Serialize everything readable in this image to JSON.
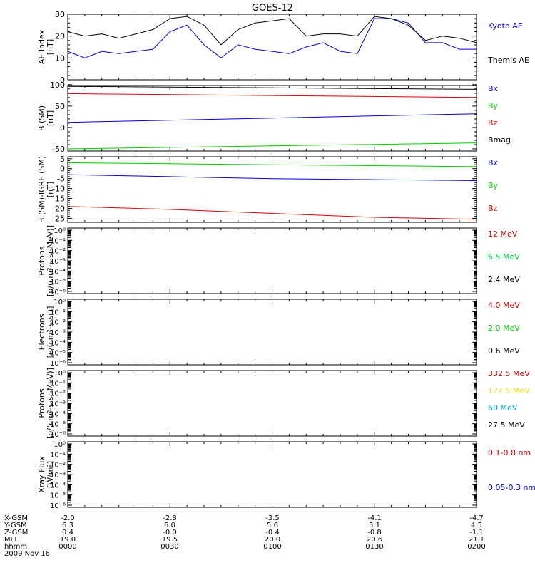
{
  "title": "GOES-12",
  "chart_data": [
    {
      "type": "line",
      "ylabel": "AE Index",
      "yunit": "[nT]",
      "ylim": [
        0,
        30
      ],
      "yticks": [
        0,
        10,
        20,
        30
      ],
      "x": [
        "0000",
        "0005",
        "0010",
        "0015",
        "0020",
        "0025",
        "0030",
        "0035",
        "0040",
        "0045",
        "0050",
        "0055",
        "0100",
        "0105",
        "0110",
        "0115",
        "0120",
        "0125",
        "0130",
        "0135",
        "0140",
        "0145",
        "0150",
        "0155",
        "0200"
      ],
      "series": [
        {
          "name": "Kyoto AE",
          "color": "#0000dd",
          "values": [
            13,
            10,
            13,
            12,
            13,
            14,
            22,
            25,
            16,
            10,
            16,
            14,
            13,
            12,
            15,
            17,
            13,
            12,
            28,
            28,
            26,
            17,
            17,
            14,
            14
          ]
        },
        {
          "name": "Themis AE",
          "color": "#000000",
          "values": [
            22,
            20,
            21,
            19,
            21,
            23,
            28,
            29,
            25,
            16,
            23,
            26,
            27,
            28,
            20,
            21,
            21,
            20,
            29,
            28,
            25,
            18,
            20,
            19,
            17
          ]
        }
      ]
    },
    {
      "type": "line",
      "ylabel": "B (SM)",
      "yunit": "[nT]",
      "ylim": [
        -55,
        98
      ],
      "yticks": [
        -50,
        0,
        50,
        100
      ],
      "x": [
        "0000",
        "0200"
      ],
      "series": [
        {
          "name": "Bx",
          "color": "#0000dd",
          "values": [
            12,
            32
          ]
        },
        {
          "name": "By",
          "color": "#00cc00",
          "values": [
            -50,
            -36
          ]
        },
        {
          "name": "Bz",
          "color": "#dd0000",
          "values": [
            79,
            70
          ]
        },
        {
          "name": "Bmag",
          "color": "#000000",
          "values": [
            96,
            89
          ]
        }
      ]
    },
    {
      "type": "line",
      "ylabel": "B (SM)-IGRF (SM)",
      "yunit": "[nT]",
      "ylim": [
        -27,
        6
      ],
      "yticks": [
        -25,
        -20,
        -15,
        -10,
        -5,
        0,
        5
      ],
      "x": [
        "0000",
        "0030",
        "0100",
        "0130",
        "0200"
      ],
      "series": [
        {
          "name": "Bx",
          "color": "#0000dd",
          "values": [
            -3,
            -4,
            -5,
            -5.5,
            -6
          ]
        },
        {
          "name": "By",
          "color": "#00cc00",
          "values": [
            3,
            2.5,
            2,
            1.5,
            1
          ]
        },
        {
          "name": "Bz",
          "color": "#dd0000",
          "values": [
            -19,
            -20.5,
            -22.5,
            -24.5,
            -25.5
          ]
        }
      ]
    },
    {
      "type": "line",
      "ylabel": "Protons",
      "yunit": "[p/(cm²-s-sr-MeV)]",
      "yscale": "log",
      "ylim": [
        1e-06,
        1
      ],
      "yticks": [
        "10⁰",
        "10⁻¹",
        "10⁻²",
        "10⁻³",
        "10⁻⁴",
        "10⁻⁵",
        "10⁻⁶"
      ],
      "series": [
        {
          "name": "12 MeV",
          "color": "#cc0000",
          "values": []
        },
        {
          "name": "6.5 MeV",
          "color": "#00cc44",
          "values": []
        },
        {
          "name": "2.4 MeV",
          "color": "#000000",
          "values": []
        }
      ]
    },
    {
      "type": "line",
      "ylabel": "Electrons",
      "yunit": "[e/(cm²-s-sr)]",
      "yscale": "log",
      "ylim": [
        1e-06,
        1
      ],
      "yticks": [
        "10⁰",
        "10⁻¹",
        "10⁻²",
        "10⁻³",
        "10⁻⁴",
        "10⁻⁵",
        "10⁻⁶"
      ],
      "series": [
        {
          "name": "4.0 MeV",
          "color": "#cc0000",
          "values": []
        },
        {
          "name": "2.0 MeV",
          "color": "#00cc00",
          "values": []
        },
        {
          "name": "0.6 MeV",
          "color": "#000000",
          "values": []
        }
      ]
    },
    {
      "type": "line",
      "ylabel": "Protons",
      "yunit": "[p/(cm²-s-sr-MeV)]",
      "yscale": "log",
      "ylim": [
        1e-06,
        1
      ],
      "yticks": [
        "10⁰",
        "10⁻¹",
        "10⁻²",
        "10⁻³",
        "10⁻⁴",
        "10⁻⁵",
        "10⁻⁶"
      ],
      "series": [
        {
          "name": "332.5 MeV",
          "color": "#cc0000",
          "values": []
        },
        {
          "name": "122.5 MeV",
          "color": "#eedd00",
          "values": []
        },
        {
          "name": "60 MeV",
          "color": "#00aadd",
          "values": []
        },
        {
          "name": "27.5 MeV",
          "color": "#000000",
          "values": []
        }
      ]
    },
    {
      "type": "line",
      "ylabel": "Xray Flux",
      "yunit": "[W/m²]",
      "yscale": "log",
      "ylim": [
        1e-06,
        1
      ],
      "yticks": [
        "10⁰",
        "10⁻¹",
        "10⁻²",
        "10⁻³",
        "10⁻⁴",
        "10⁻⁵",
        "10⁻⁶"
      ],
      "series": [
        {
          "name": "0.1-0.8 nm",
          "color": "#cc0000",
          "values": []
        },
        {
          "name": "0.05-0.3 nm",
          "color": "#0000dd",
          "values": []
        }
      ]
    }
  ],
  "footer": {
    "rows": [
      {
        "label": "X-GSM",
        "values": [
          "-2.0",
          "-2.8",
          "-3.5",
          "-4.1",
          "-4.7"
        ]
      },
      {
        "label": "Y-GSM",
        "values": [
          "6.3",
          "6.0",
          "5.6",
          "5.1",
          "4.5"
        ]
      },
      {
        "label": "Z-GSM",
        "values": [
          "0.4",
          "-0.0",
          "-0.4",
          "-0.8",
          "-1.1"
        ]
      },
      {
        "label": "MLT",
        "values": [
          "19.0",
          "19.5",
          "20.0",
          "20.6",
          "21.1"
        ]
      },
      {
        "label": "hhmm",
        "values": [
          "0000",
          "0030",
          "0100",
          "0130",
          "0200"
        ]
      }
    ],
    "date": "2009 Nov 16"
  }
}
